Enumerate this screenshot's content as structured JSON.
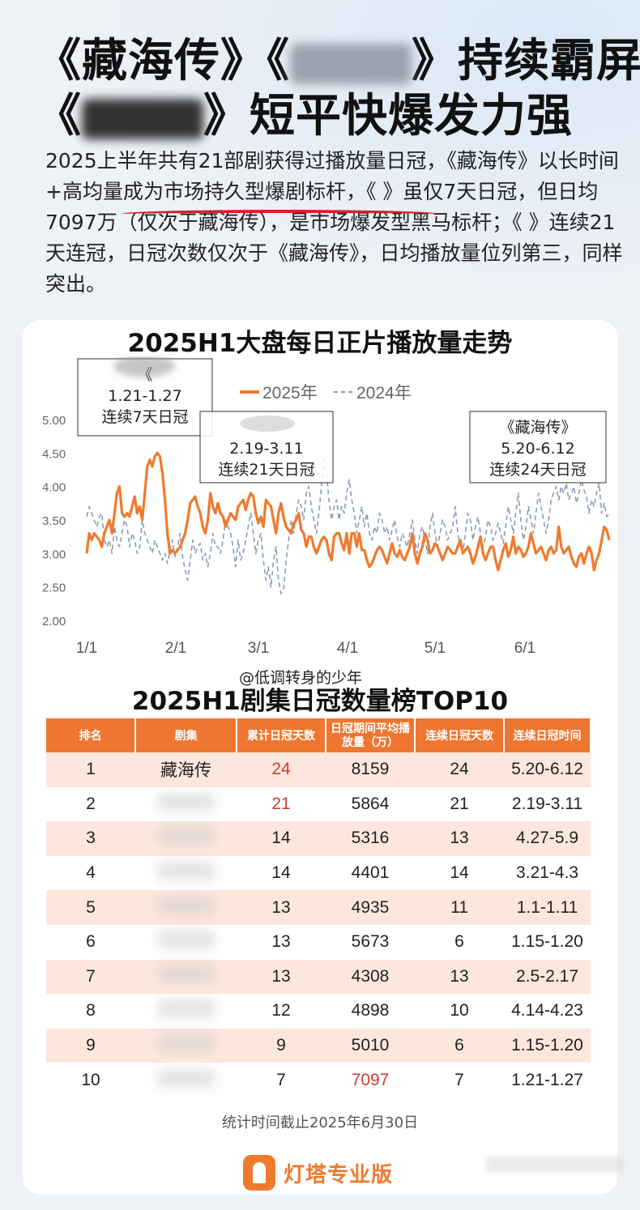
{
  "header": {
    "line1_a": "《藏海传》《",
    "line1_b": "》持续霸屏",
    "line2_a": "《",
    "line2_b": "》短平快爆发力强"
  },
  "intro": {
    "text": "2025上半年共有21部剧获得过播放量日冠，《藏海传》以长时间+高均量成为市场持久型爆剧标杆，《 》虽仅7天日冠，但日均7097万（仅次于藏海传），是市场爆发型黑马标杆；《 》连续21天连冠，日冠次数仅次于《藏海传》，日均播放量位列第三，同样突出。"
  },
  "chart_data": [
    {
      "type": "line",
      "title": "2025H1大盘每日正片播放量走势",
      "x_ticks": [
        "1/1",
        "2/1",
        "3/1",
        "4/1",
        "5/1",
        "6/1"
      ],
      "ylim": [
        2.0,
        5.0
      ],
      "y_ticks": [
        "2.00",
        "2.50",
        "3.00",
        "3.50",
        "4.00",
        "4.50",
        "5.00"
      ],
      "legend_position": "top",
      "series": [
        {
          "name": "2025年",
          "color": "#ef7a2e",
          "style": "solid",
          "values": [
            3.0,
            3.3,
            3.2,
            3.3,
            3.25,
            3.2,
            3.1,
            3.3,
            3.4,
            3.5,
            3.3,
            3.6,
            3.9,
            4.0,
            3.6,
            3.55,
            3.6,
            3.55,
            3.7,
            3.85,
            3.6,
            3.7,
            3.5,
            3.9,
            4.3,
            4.4,
            4.3,
            4.45,
            4.5,
            4.45,
            4.2,
            3.8,
            3.3,
            3.0,
            3.05,
            3.0,
            3.05,
            3.1,
            3.2,
            3.3,
            3.5,
            3.75,
            3.8,
            3.85,
            3.7,
            3.6,
            3.4,
            3.3,
            3.5,
            3.9,
            3.7,
            3.6,
            3.75,
            3.6,
            3.55,
            3.4,
            3.5,
            3.6,
            3.55,
            3.5,
            3.7,
            3.75,
            3.8,
            3.65,
            3.8,
            3.9,
            3.85,
            3.6,
            3.45,
            3.55,
            3.4,
            3.8,
            3.75,
            3.7,
            3.5,
            3.3,
            3.6,
            3.75,
            3.55,
            3.4,
            3.35,
            3.3,
            3.45,
            3.5,
            3.6,
            3.35,
            3.3,
            3.1,
            3.25,
            3.25,
            3.1,
            3.0,
            3.1,
            3.2,
            3.25,
            3.2,
            3.0,
            2.9,
            3.25,
            3.3,
            3.3,
            3.15,
            3.05,
            3.3,
            3.0,
            3.3,
            3.3,
            3.1,
            3.3,
            3.05,
            3.05,
            2.9,
            2.8,
            2.85,
            2.95,
            3.05,
            3.1,
            3.05,
            2.95,
            2.85,
            3.0,
            3.15,
            3.0,
            2.95,
            3.05,
            2.95,
            2.9,
            3.0,
            3.1,
            3.3,
            3.0,
            2.85,
            3.0,
            3.1,
            3.3,
            3.2,
            3.0,
            3.05,
            3.15,
            3.1,
            3.0,
            2.9,
            3.0,
            3.1,
            3.05,
            3.0,
            3.0,
            3.1,
            3.2,
            3.0,
            3.05,
            3.1,
            3.0,
            2.85,
            2.95,
            3.1,
            3.25,
            3.0,
            2.9,
            3.0,
            3.1,
            3.1,
            2.9,
            2.75,
            2.9,
            3.05,
            3.15,
            2.95,
            3.05,
            3.25,
            3.0,
            3.1,
            3.05,
            2.95,
            3.0,
            3.1,
            3.3,
            3.15,
            3.0,
            3.05,
            3.1,
            3.0,
            2.9,
            3.05,
            3.1,
            3.0,
            3.05,
            3.4,
            3.1,
            3.0,
            3.05,
            3.1,
            2.95,
            2.85,
            2.8,
            2.95,
            3.0,
            2.85,
            3.0,
            3.1,
            3.0,
            2.75,
            2.9,
            3.0,
            3.2,
            3.4,
            3.35,
            3.2
          ]
        },
        {
          "name": "2024年",
          "color": "#8a9db5",
          "style": "dashed",
          "values": [
            3.55,
            3.7,
            3.6,
            3.5,
            3.4,
            3.55,
            3.6,
            3.2,
            3.1,
            3.2,
            3.0,
            3.4,
            3.2,
            3.1,
            3.3,
            3.5,
            3.4,
            3.1,
            3.3,
            3.2,
            3.0,
            3.1,
            3.5,
            3.3,
            3.2,
            3.1,
            3.0,
            3.2,
            3.1,
            3.0,
            2.9,
            3.0,
            2.85,
            3.05,
            3.2,
            2.95,
            3.1,
            3.3,
            2.95,
            2.75,
            2.6,
            2.9,
            3.2,
            3.0,
            3.1,
            3.15,
            2.9,
            3.0,
            2.8,
            3.0,
            3.3,
            3.1,
            3.1,
            3.0,
            3.2,
            3.5,
            3.4,
            3.3,
            3.1,
            2.8,
            3.2,
            2.9,
            3.0,
            3.2,
            3.4,
            3.6,
            3.3,
            3.0,
            3.2,
            3.3,
            2.9,
            2.6,
            2.8,
            2.5,
            2.9,
            3.1,
            2.6,
            2.4,
            2.45,
            2.9,
            3.2,
            3.5,
            3.3,
            3.6,
            3.8,
            3.7,
            3.5,
            3.9,
            4.0,
            3.7,
            3.5,
            3.3,
            3.6,
            4.0,
            4.4,
            4.2,
            3.8,
            3.5,
            3.7,
            3.8,
            3.5,
            3.7,
            3.6,
            3.9,
            4.1,
            3.8,
            3.6,
            3.3,
            3.5,
            3.7,
            3.4,
            3.6,
            3.3,
            3.2,
            3.4,
            3.3,
            3.6,
            3.5,
            3.3,
            3.4,
            3.2,
            3.35,
            3.5,
            3.25,
            3.1,
            3.3,
            3.2,
            3.1,
            3.3,
            3.5,
            3.2,
            3.0,
            3.3,
            3.4,
            3.2,
            3.0,
            3.4,
            3.6,
            3.3,
            3.1,
            3.3,
            3.5,
            3.4,
            3.2,
            3.3,
            3.4,
            3.7,
            3.3,
            3.1,
            3.0,
            3.3,
            3.6,
            3.5,
            3.2,
            3.4,
            3.55,
            3.3,
            3.1,
            3.25,
            3.5,
            3.4,
            3.2,
            3.3,
            3.45,
            3.3,
            3.15,
            3.4,
            3.7,
            3.5,
            3.3,
            3.6,
            3.9,
            3.5,
            3.2,
            3.4,
            3.7,
            3.5,
            3.3,
            3.6,
            3.9,
            3.7,
            3.5,
            3.3,
            3.5,
            3.8,
            3.9,
            4.0,
            3.8,
            4.0,
            3.9,
            4.05,
            3.8,
            3.9,
            4.0,
            3.75,
            3.9,
            4.1,
            3.95,
            3.85,
            3.6,
            3.8,
            3.7,
            3.9,
            4.05,
            3.6,
            3.75,
            3.55,
            3.6
          ]
        }
      ],
      "annotations": [
        {
          "lines": [
            "《",
            "1.21-1.27",
            "连续7天日冠"
          ]
        },
        {
          "lines": [
            "",
            "2.19-3.11",
            "连续21天日冠"
          ]
        },
        {
          "lines": [
            "《藏海传》",
            "5.20-6.12",
            "连续24天日冠"
          ]
        }
      ]
    },
    {
      "type": "table",
      "title": "2025H1剧集日冠数量榜TOP10",
      "columns": [
        "排名",
        "剧集",
        "累计日冠天数",
        "日冠期间平均播放量（万）",
        "连续日冠天数",
        "连续日冠时间"
      ],
      "rows": [
        [
          "1",
          "藏海传",
          "24",
          "8159",
          "24",
          "5.20-6.12"
        ],
        [
          "2",
          "",
          "21",
          "5864",
          "21",
          "2.19-3.11"
        ],
        [
          "3",
          "",
          "14",
          "5316",
          "13",
          "4.27-5.9"
        ],
        [
          "4",
          "",
          "14",
          "4401",
          "14",
          "3.21-4.3"
        ],
        [
          "5",
          "",
          "13",
          "4935",
          "11",
          "1.1-1.11"
        ],
        [
          "6",
          "",
          "13",
          "5673",
          "6",
          "1.15-1.20"
        ],
        [
          "7",
          "",
          "13",
          "4308",
          "13",
          "2.5-2.17"
        ],
        [
          "8",
          "",
          "12",
          "4898",
          "10",
          "4.14-4.23"
        ],
        [
          "9",
          "",
          "9",
          "5010",
          "6",
          "1.15-1.20"
        ],
        [
          "10",
          "",
          "7",
          "7097",
          "7",
          "1.21-1.27"
        ]
      ]
    }
  ],
  "watermark": "@低调转身的少年",
  "footnote": "统计时间截止2025年6月30日",
  "brand": {
    "name": "灯塔专业版",
    "icon": "lighthouse-icon",
    "color": "#ef7a2e"
  }
}
